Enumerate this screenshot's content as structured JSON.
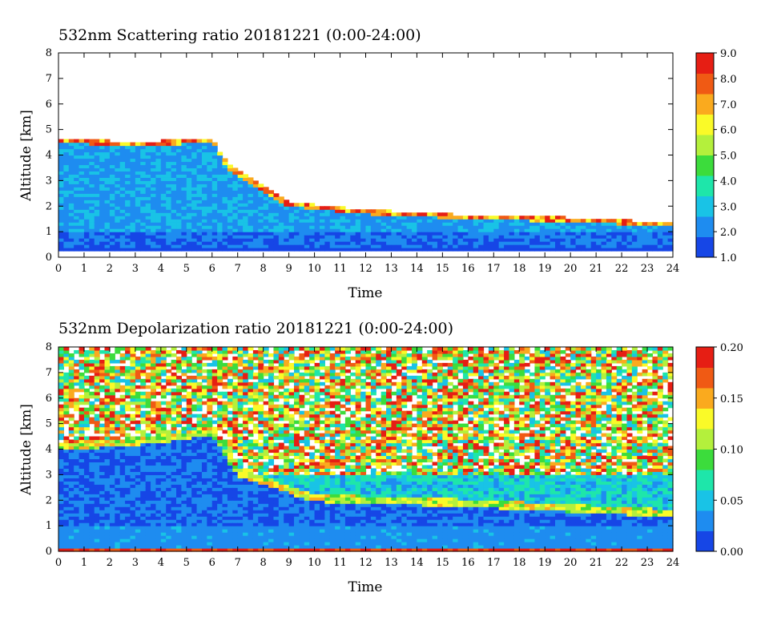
{
  "chart_data": [
    {
      "type": "heatmap",
      "title": "532nm Scattering ratio  20181221 (0:00-24:00)",
      "xlabel": "Time",
      "ylabel": "Altitude [km]",
      "xlim": [
        0,
        24
      ],
      "ylim": [
        0,
        8
      ],
      "xticks": [
        "0",
        "1",
        "2",
        "3",
        "4",
        "5",
        "6",
        "7",
        "8",
        "9",
        "10",
        "11",
        "12",
        "13",
        "14",
        "15",
        "16",
        "17",
        "18",
        "19",
        "20",
        "21",
        "22",
        "23",
        "24"
      ],
      "yticks": [
        "0",
        "1",
        "2",
        "3",
        "4",
        "5",
        "6",
        "7",
        "8"
      ],
      "colorbar": {
        "min": 1.0,
        "max": 9.0,
        "ticks": [
          "1.0",
          "2.0",
          "3.0",
          "4.0",
          "5.0",
          "6.0",
          "7.0",
          "8.0",
          "9.0"
        ],
        "colors": [
          "#1646e6",
          "#1e8cf0",
          "#19c3e6",
          "#1ee6aa",
          "#3cdc3c",
          "#b4f03c",
          "#fafa28",
          "#faaa1e",
          "#f05a14",
          "#e61e14"
        ]
      },
      "features": {
        "cloud_base_km": [
          {
            "x": 0,
            "y": 4.5
          },
          {
            "x": 2,
            "y": 4.4
          },
          {
            "x": 4,
            "y": 4.4
          },
          {
            "x": 6,
            "y": 4.5
          },
          {
            "x": 6.6,
            "y": 3.5
          },
          {
            "x": 8,
            "y": 2.6
          },
          {
            "x": 9,
            "y": 2.0
          },
          {
            "x": 12,
            "y": 1.7
          },
          {
            "x": 16,
            "y": 1.5
          },
          {
            "x": 20,
            "y": 1.4
          },
          {
            "x": 24,
            "y": 1.2
          }
        ],
        "background_value": 2.2,
        "near_surface_km": [
          0.25,
          0.35
        ]
      }
    },
    {
      "type": "heatmap",
      "title": "532nm Depolarization ratio  20181221 (0:00-24:00)",
      "xlabel": "Time",
      "ylabel": "Altitude [km]",
      "xlim": [
        0,
        24
      ],
      "ylim": [
        0,
        8
      ],
      "xticks": [
        "0",
        "1",
        "2",
        "3",
        "4",
        "5",
        "6",
        "7",
        "8",
        "9",
        "10",
        "11",
        "12",
        "13",
        "14",
        "15",
        "16",
        "17",
        "18",
        "19",
        "20",
        "21",
        "22",
        "23",
        "24"
      ],
      "yticks": [
        "0",
        "1",
        "2",
        "3",
        "4",
        "5",
        "6",
        "7",
        "8"
      ],
      "colorbar": {
        "min": 0.0,
        "max": 0.2,
        "ticks": [
          "0.00",
          "0.05",
          "0.10",
          "0.15",
          "0.20"
        ],
        "colors": [
          "#1646e6",
          "#1e8cf0",
          "#19c3e6",
          "#1ee6aa",
          "#3cdc3c",
          "#b4f03c",
          "#fafa28",
          "#faaa1e",
          "#f05a14",
          "#e61e14"
        ]
      },
      "features": {
        "background_value": 0.02,
        "noisy_region_above_km": 3.0,
        "cloud_base_km": [
          {
            "x": 0,
            "y": 4.0
          },
          {
            "x": 4,
            "y": 4.3
          },
          {
            "x": 6,
            "y": 4.6
          },
          {
            "x": 7,
            "y": 3.0
          },
          {
            "x": 10,
            "y": 2.0
          },
          {
            "x": 16,
            "y": 1.8
          },
          {
            "x": 20,
            "y": 1.6
          },
          {
            "x": 24,
            "y": 1.4
          }
        ]
      }
    }
  ]
}
